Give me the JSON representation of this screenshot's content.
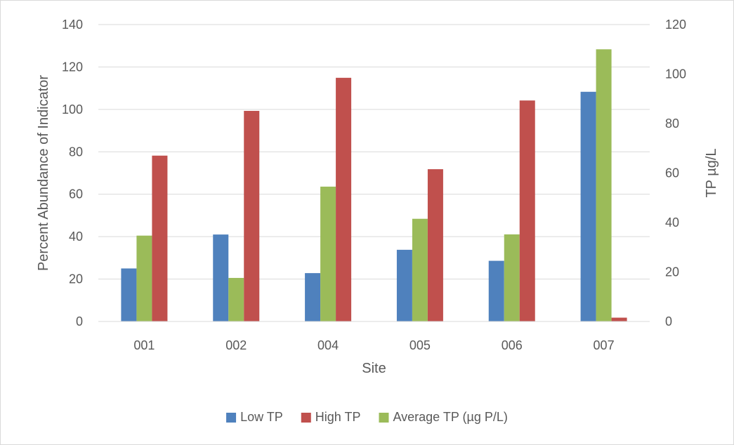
{
  "chart_data": {
    "type": "bar",
    "categories": [
      "001",
      "002",
      "004",
      "005",
      "006",
      "007"
    ],
    "xlabel": "Site",
    "ylabel": "Percent Abundance of Indicator",
    "y2label": "TP µg/L",
    "ylim": [
      0,
      140
    ],
    "y2lim": [
      0,
      120
    ],
    "yticks": [
      0,
      20,
      40,
      60,
      80,
      100,
      120,
      140
    ],
    "y2ticks": [
      0,
      20,
      40,
      60,
      80,
      100,
      120
    ],
    "grid": true,
    "legend_position": "bottom",
    "series": [
      {
        "name": "Low TP",
        "axis": "left",
        "color": "#4f81bd",
        "values": [
          25,
          41,
          22.8,
          33.8,
          28.6,
          108.3
        ]
      },
      {
        "name": "Average TP (µg P/L)",
        "axis": "right",
        "color": "#9bbb59",
        "values": [
          34.7,
          17.6,
          54.5,
          41.5,
          35.2,
          110
        ]
      },
      {
        "name": "High TP",
        "axis": "left",
        "color": "#c0504d",
        "values": [
          78.2,
          99.3,
          114.9,
          71.8,
          104.2,
          1.8
        ]
      }
    ],
    "legend_order": [
      0,
      2,
      1
    ]
  }
}
